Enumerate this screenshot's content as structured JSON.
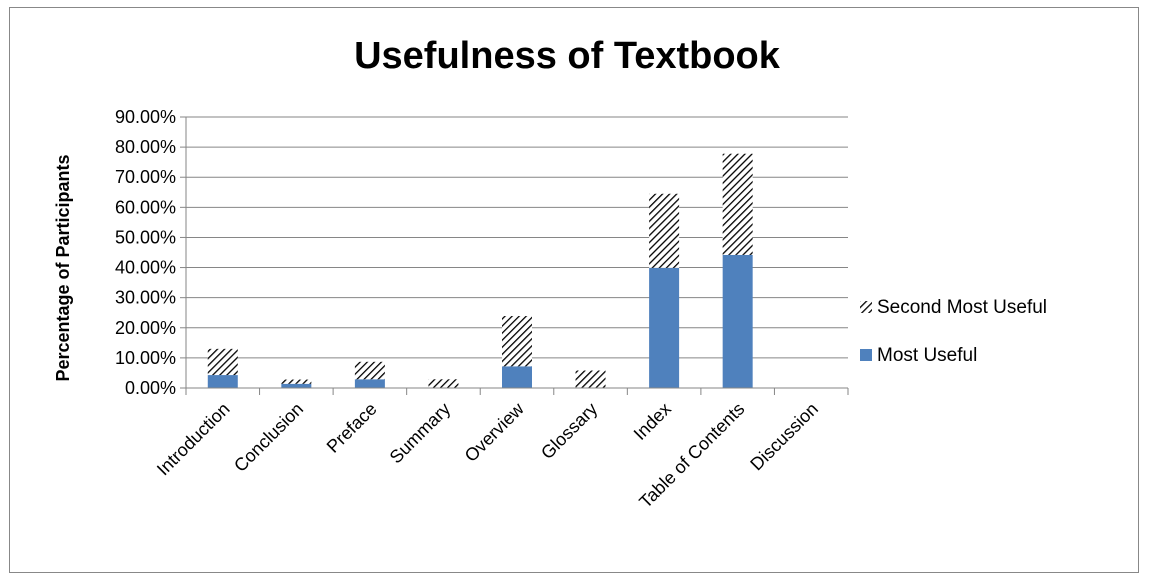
{
  "chart_data": {
    "type": "bar",
    "stacked": true,
    "title": "Usefulness of Textbook",
    "xlabel": "",
    "ylabel": "Percentage of Participants",
    "categories": [
      "Introduction",
      "Conclusion",
      "Preface",
      "Summary",
      "Overview",
      "Glossary",
      "Index",
      "Table of Contents",
      "Discussion"
    ],
    "series": [
      {
        "name": "Most Useful",
        "values": [
          4.3,
          1.4,
          2.9,
          0.0,
          7.2,
          0.0,
          39.9,
          44.2,
          0.0
        ],
        "color": "#4f81bd",
        "pattern": "solid"
      },
      {
        "name": "Second Most Useful",
        "values": [
          8.7,
          1.4,
          5.8,
          2.9,
          16.7,
          5.8,
          24.6,
          33.6,
          0.0
        ],
        "color": "#000000",
        "pattern": "diagonal-hatch"
      }
    ],
    "ylim": [
      0,
      90
    ],
    "yticks": [
      "0.00%",
      "10.00%",
      "20.00%",
      "30.00%",
      "40.00%",
      "50.00%",
      "60.00%",
      "70.00%",
      "80.00%",
      "90.00%"
    ],
    "grid": true,
    "legend_position": "right"
  }
}
